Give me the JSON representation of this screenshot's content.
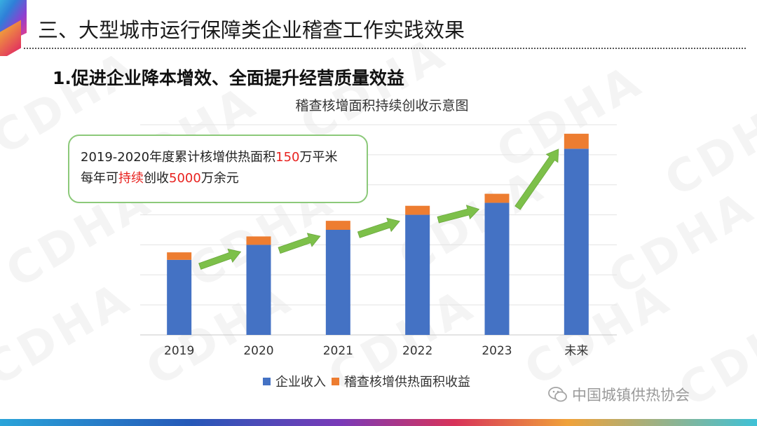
{
  "slide": {
    "title": "三、大型城市运行保障类企业稽查工作实践效果",
    "section_heading": "1.促进企业降本增效、全面提升经营质量效益"
  },
  "callout": {
    "line1_prefix": "2019-2020年度累计核增供热面积",
    "line1_highlight": "150",
    "line1_suffix": "万平米",
    "line2_prefix": "每年可",
    "line2_highlight1": "持续",
    "line2_mid": "创收",
    "line2_highlight2": "5000",
    "line2_suffix": "万余元"
  },
  "watermark_text": "CDHA",
  "brand": {
    "name": "中国城镇供热协会",
    "icon": "wechat-icon"
  },
  "colors": {
    "blue": "#4472C4",
    "orange": "#ED7D31",
    "arrow": "#7DC04A",
    "red": "#E8221F"
  },
  "chart_data": {
    "type": "bar",
    "stacked": true,
    "title": "稽查核增面积持续创收示意图",
    "categories": [
      "2019",
      "2020",
      "2021",
      "2022",
      "2023",
      "未来"
    ],
    "series": [
      {
        "name": "企业收入",
        "values": [
          2.5,
          3.0,
          3.5,
          4.0,
          4.4,
          6.2
        ]
      },
      {
        "name": "稽查核增供热面积收益",
        "values": [
          0.25,
          0.28,
          0.3,
          0.3,
          0.3,
          0.5
        ]
      }
    ],
    "ylim": [
      0,
      7
    ],
    "grid": true,
    "y_tick_labels_shown": false,
    "legend": "bottom",
    "annotations": "green arrows between consecutive bars indicating growth"
  }
}
